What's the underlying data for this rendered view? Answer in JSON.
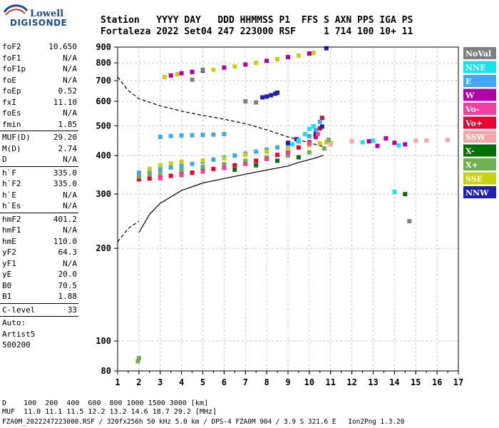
{
  "logo": {
    "brand_top": "Lowell",
    "brand_bottom": "DIGISONDE"
  },
  "header": {
    "line1": "Station   YYYY DAY   DDD HHMMSS P1  FFS S AXN PPS IGA PS",
    "line2": "Fortaleza 2022 Set04 247 223000 RSF     1 714 100 10+ 11"
  },
  "params": [
    {
      "name": "foF2",
      "value": "10.650"
    },
    {
      "name": "foF1",
      "value": "N/A"
    },
    {
      "name": "foF1p",
      "value": "N/A"
    },
    {
      "name": "foE",
      "value": "N/A"
    },
    {
      "name": "foEp",
      "value": "0.52"
    },
    {
      "name": "fxI",
      "value": "11.10"
    },
    {
      "name": "foEs",
      "value": "N/A"
    },
    {
      "name": "fmin",
      "value": "1.85"
    },
    {
      "sep": true
    },
    {
      "name": "MUF(D)",
      "value": "29.20"
    },
    {
      "name": "M(D)",
      "value": "2.74"
    },
    {
      "name": "D",
      "value": "N/A"
    },
    {
      "sep": true
    },
    {
      "name": "h`F",
      "value": "335.0"
    },
    {
      "name": "h`F2",
      "value": "335.0"
    },
    {
      "name": "h`E",
      "value": "N/A"
    },
    {
      "name": "h`Es",
      "value": "N/A"
    },
    {
      "sep": true
    },
    {
      "name": "hmF2",
      "value": "401.2"
    },
    {
      "name": "hmF1",
      "value": "N/A"
    },
    {
      "name": "hmE",
      "value": "110.0"
    },
    {
      "name": "yF2",
      "value": "64.3"
    },
    {
      "name": "yF1",
      "value": "N/A"
    },
    {
      "name": "yE",
      "value": "20.0"
    },
    {
      "name": "B0",
      "value": "70.5"
    },
    {
      "name": "B1",
      "value": "1.88"
    },
    {
      "sep": true
    },
    {
      "name": "C-level",
      "value": "33"
    },
    {
      "sep": true
    },
    {
      "name": "Auto:",
      "value": ""
    },
    {
      "name": "Artist5",
      "value": ""
    },
    {
      "name": "500200",
      "value": ""
    }
  ],
  "legend": [
    {
      "label": "NoVal",
      "color": "#808080"
    },
    {
      "label": "NNE",
      "color": "#18e4f0"
    },
    {
      "label": "E",
      "color": "#40a8f0"
    },
    {
      "label": "W",
      "color": "#b000a8"
    },
    {
      "label": "Vo-",
      "color": "#f040a0"
    },
    {
      "label": "Vo+",
      "color": "#e80030"
    },
    {
      "label": "SSW",
      "color": "#f0a8a8"
    },
    {
      "label": "X-",
      "color": "#007000"
    },
    {
      "label": "X+",
      "color": "#70b050"
    },
    {
      "label": "SSE",
      "color": "#c8d010"
    },
    {
      "label": "NNW",
      "color": "#2020b0"
    }
  ],
  "bottom": {
    "line_d": "D    100  200  400  600  800 1000 1500 3000 [km]",
    "line_muf": "MUF  11.0 11.1 11.5 12.2 13.2 14.6 18.7 29.2 [MHz]",
    "line_file": "FZA0M_2022247223000.RSF / 320fx256h 50 kHz 5.0 km / DPS-4 FZA0M 904 / 3.9 S 321.6 E   Ion2Png 1.3.20"
  },
  "chart_data": {
    "type": "scatter",
    "title": "",
    "xlabel": "",
    "ylabel": "",
    "xlim": [
      1,
      17
    ],
    "ylim": [
      80,
      900
    ],
    "yscale": "log",
    "grid": true,
    "x_ticks": [
      "1",
      "2",
      "3",
      "4",
      "5",
      "6",
      "7",
      "8",
      "9",
      "10",
      "11",
      "12",
      "13",
      "14",
      "15",
      "16",
      "17"
    ],
    "y_ticks": [
      "80",
      "100",
      "200",
      "300",
      "400",
      "500",
      "600",
      "700",
      "800",
      "900"
    ],
    "legend_position": "right",
    "series": [
      {
        "name": "Vo+",
        "color": "#e80030",
        "points": [
          [
            2.0,
            335
          ],
          [
            2.5,
            337
          ],
          [
            3.0,
            340
          ],
          [
            3.5,
            344
          ],
          [
            4.0,
            348
          ],
          [
            4.5,
            352
          ],
          [
            5.0,
            357
          ],
          [
            5.5,
            362
          ],
          [
            6.0,
            367
          ],
          [
            6.5,
            372
          ],
          [
            7.0,
            378
          ],
          [
            7.5,
            385
          ],
          [
            8.0,
            393
          ],
          [
            8.5,
            402
          ],
          [
            9.0,
            412
          ],
          [
            9.5,
            425
          ],
          [
            10.0,
            442
          ],
          [
            10.3,
            460
          ],
          [
            10.5,
            490
          ],
          [
            10.6,
            530
          ]
        ]
      },
      {
        "name": "E",
        "color": "#40a8f0",
        "points": [
          [
            2.0,
            352
          ],
          [
            2.5,
            356
          ],
          [
            3.0,
            362
          ],
          [
            3.5,
            366
          ],
          [
            4.0,
            370
          ],
          [
            4.5,
            376
          ],
          [
            5.0,
            382
          ],
          [
            5.5,
            388
          ],
          [
            6.0,
            394
          ],
          [
            6.5,
            400
          ],
          [
            7.0,
            406
          ],
          [
            7.5,
            412
          ],
          [
            8.0,
            418
          ],
          [
            8.5,
            425
          ],
          [
            9.0,
            432
          ],
          [
            9.5,
            445
          ],
          [
            10.0,
            462
          ],
          [
            10.3,
            485
          ],
          [
            10.5,
            515
          ],
          [
            3.0,
            460
          ],
          [
            3.5,
            463
          ],
          [
            4.0,
            465
          ],
          [
            4.5,
            466
          ],
          [
            5.0,
            467
          ],
          [
            5.5,
            468
          ],
          [
            6.0,
            470
          ]
        ]
      },
      {
        "name": "SSE",
        "color": "#c8d010",
        "points": [
          [
            2.5,
            362
          ],
          [
            3.0,
            372
          ],
          [
            3.5,
            377
          ],
          [
            4.0,
            382
          ],
          [
            5.0,
            386
          ],
          [
            6.0,
            392
          ],
          [
            7.0,
            402
          ],
          [
            8.0,
            412
          ],
          [
            9.0,
            422
          ],
          [
            10.0,
            432
          ],
          [
            10.5,
            438
          ],
          [
            10.8,
            442
          ],
          [
            11.0,
            440
          ],
          [
            3.2,
            720
          ],
          [
            3.8,
            735
          ],
          [
            4.5,
            745
          ],
          [
            5.5,
            760
          ],
          [
            6.5,
            778
          ],
          [
            7.5,
            800
          ],
          [
            8.5,
            822
          ],
          [
            9.5,
            845
          ],
          [
            10.2,
            862
          ]
        ]
      },
      {
        "name": "W",
        "color": "#b000a8",
        "points": [
          [
            3.5,
            728
          ],
          [
            4.0,
            740
          ],
          [
            4.5,
            748
          ],
          [
            5.0,
            755
          ],
          [
            6.0,
            772
          ],
          [
            7.0,
            790
          ],
          [
            8.0,
            812
          ],
          [
            9.0,
            835
          ],
          [
            10.0,
            858
          ],
          [
            12.8,
            445
          ],
          [
            13.2,
            430
          ],
          [
            13.6,
            455
          ],
          [
            14.0,
            440
          ],
          [
            14.5,
            435
          ]
        ]
      },
      {
        "name": "NNW",
        "color": "#2020b0",
        "points": [
          [
            7.8,
            618
          ],
          [
            8.0,
            622
          ],
          [
            8.2,
            628
          ],
          [
            8.4,
            635
          ],
          [
            8.5,
            640
          ],
          [
            9.0,
            440
          ],
          [
            9.4,
            452
          ],
          [
            10.3,
            470
          ],
          [
            10.6,
            497
          ],
          [
            10.8,
            892
          ]
        ]
      },
      {
        "name": "NNE",
        "color": "#18e4f0",
        "points": [
          [
            9.2,
            435
          ],
          [
            9.5,
            448
          ],
          [
            9.8,
            470
          ],
          [
            10.0,
            488
          ],
          [
            10.2,
            498
          ],
          [
            12.5,
            442
          ],
          [
            13.0,
            447
          ],
          [
            14.2,
            432
          ],
          [
            14.0,
            305
          ]
        ]
      },
      {
        "name": "X+",
        "color": "#70b050",
        "points": [
          [
            2.0,
            342
          ],
          [
            2.5,
            348
          ],
          [
            3.0,
            352
          ],
          [
            4.0,
            360
          ],
          [
            5.0,
            368
          ],
          [
            6.0,
            375
          ],
          [
            7.0,
            385
          ],
          [
            8.0,
            394
          ],
          [
            9.0,
            400
          ],
          [
            10.0,
            410
          ],
          [
            10.7,
            422
          ],
          [
            10.9,
            450
          ],
          [
            1.95,
            86
          ],
          [
            2.0,
            88
          ]
        ]
      },
      {
        "name": "X-",
        "color": "#007000",
        "points": [
          [
            6.5,
            360
          ],
          [
            7.5,
            372
          ],
          [
            8.5,
            385
          ],
          [
            9.5,
            395
          ],
          [
            14.5,
            300
          ]
        ]
      },
      {
        "name": "Vo-",
        "color": "#f040a0",
        "points": [
          [
            3.0,
            338
          ],
          [
            4.0,
            346
          ],
          [
            5.0,
            355
          ],
          [
            6.0,
            365
          ],
          [
            7.0,
            376
          ],
          [
            8.0,
            390
          ],
          [
            9.0,
            408
          ],
          [
            10.0,
            438
          ],
          [
            10.4,
            470
          ]
        ]
      },
      {
        "name": "SSW",
        "color": "#f0a8a8",
        "points": [
          [
            11.0,
            435
          ],
          [
            12.0,
            445
          ],
          [
            15.0,
            447
          ],
          [
            15.5,
            448
          ],
          [
            16.5,
            450
          ]
        ]
      },
      {
        "name": "NoVal",
        "color": "#808080",
        "points": [
          [
            4.5,
            705
          ],
          [
            5.0,
            760
          ],
          [
            7.0,
            600
          ],
          [
            7.5,
            595
          ],
          [
            14.7,
            245
          ]
        ]
      }
    ],
    "curves": [
      {
        "style": "solid",
        "points": [
          [
            2.0,
            225
          ],
          [
            2.5,
            258
          ],
          [
            3.0,
            280
          ],
          [
            4.0,
            308
          ],
          [
            5.0,
            326
          ],
          [
            6.0,
            337
          ],
          [
            7.0,
            348
          ],
          [
            8.0,
            359
          ],
          [
            9.0,
            370
          ],
          [
            9.5,
            380
          ],
          [
            10.0,
            388
          ],
          [
            10.4,
            395
          ],
          [
            10.65,
            401
          ]
        ]
      },
      {
        "style": "dashed",
        "points": [
          [
            1.0,
            720
          ],
          [
            1.5,
            650
          ],
          [
            2.0,
            612
          ],
          [
            3.0,
            580
          ],
          [
            4.0,
            558
          ],
          [
            5.0,
            540
          ],
          [
            6.0,
            525
          ],
          [
            7.0,
            508
          ],
          [
            8.0,
            485
          ],
          [
            9.0,
            460
          ],
          [
            10.0,
            440
          ],
          [
            10.65,
            428
          ]
        ]
      },
      {
        "style": "dashed",
        "points": [
          [
            1.0,
            210
          ],
          [
            1.5,
            232
          ],
          [
            2.0,
            245
          ]
        ]
      }
    ]
  }
}
